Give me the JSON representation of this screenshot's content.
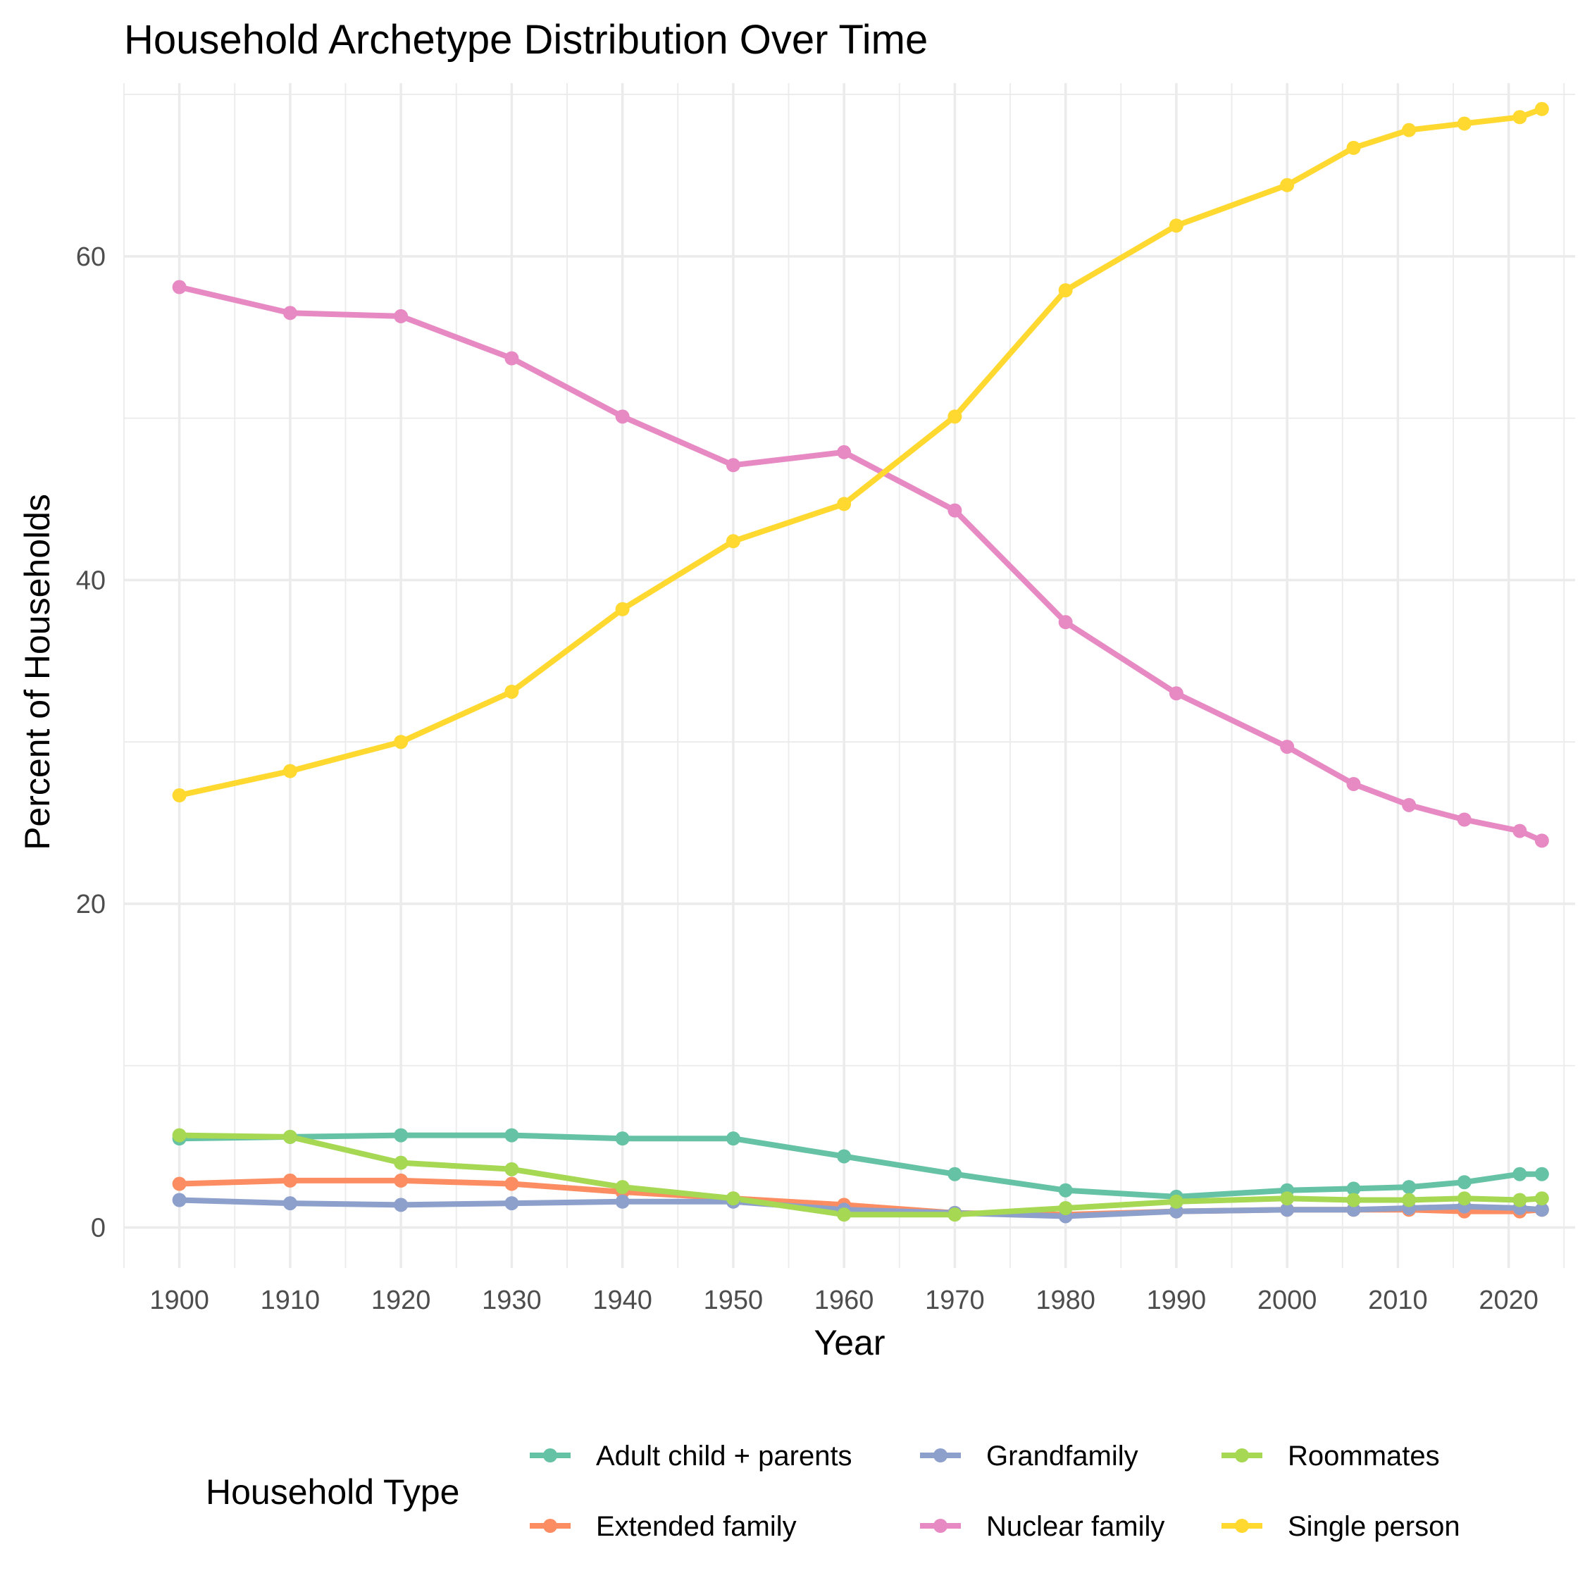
{
  "chart_data": {
    "type": "line",
    "title": "Household Archetype Distribution Over Time",
    "xlabel": "Year",
    "ylabel": "Percent of Households",
    "xlim": [
      1895,
      2026
    ],
    "ylim": [
      -2.5,
      70.7
    ],
    "x_ticks": [
      1900,
      1910,
      1920,
      1930,
      1940,
      1950,
      1960,
      1970,
      1980,
      1990,
      2000,
      2010,
      2020
    ],
    "y_ticks": [
      0,
      20,
      40,
      60
    ],
    "grid": true,
    "legend_title": "Household Type",
    "legend_position": "bottom",
    "x": [
      1900,
      1910,
      1920,
      1930,
      1940,
      1950,
      1960,
      1970,
      1980,
      1990,
      2000,
      2006,
      2011,
      2016,
      2021,
      2023
    ],
    "series": [
      {
        "name": "Adult child + parents",
        "color": "#66c2a5",
        "values": [
          5.5,
          5.6,
          5.7,
          5.7,
          5.5,
          5.5,
          4.4,
          3.3,
          2.3,
          1.9,
          2.3,
          2.4,
          2.5,
          2.8,
          3.3,
          3.3
        ]
      },
      {
        "name": "Extended family",
        "color": "#fc8d62",
        "values": [
          2.7,
          2.9,
          2.9,
          2.7,
          2.2,
          1.8,
          1.4,
          0.9,
          0.8,
          1.0,
          1.1,
          1.1,
          1.1,
          1.0,
          1.0,
          1.1
        ]
      },
      {
        "name": "Grandfamily",
        "color": "#8da0cb",
        "values": [
          1.7,
          1.5,
          1.4,
          1.5,
          1.6,
          1.6,
          1.1,
          0.9,
          0.7,
          1.0,
          1.1,
          1.1,
          1.2,
          1.3,
          1.2,
          1.1
        ]
      },
      {
        "name": "Nuclear family",
        "color": "#e78ac3",
        "values": [
          58.1,
          56.5,
          56.3,
          53.7,
          50.1,
          47.1,
          47.9,
          44.3,
          37.4,
          33.0,
          29.7,
          27.4,
          26.1,
          25.2,
          24.5,
          23.9
        ]
      },
      {
        "name": "Roommates",
        "color": "#a6d854",
        "values": [
          5.7,
          5.6,
          4.0,
          3.6,
          2.5,
          1.8,
          0.8,
          0.8,
          1.2,
          1.6,
          1.8,
          1.7,
          1.7,
          1.8,
          1.7,
          1.8
        ]
      },
      {
        "name": "Single person",
        "color": "#ffd92f",
        "values": [
          26.7,
          28.2,
          30.0,
          33.1,
          38.2,
          42.4,
          44.7,
          50.1,
          57.9,
          61.9,
          64.4,
          66.7,
          67.8,
          68.2,
          68.6,
          69.1
        ]
      }
    ]
  }
}
